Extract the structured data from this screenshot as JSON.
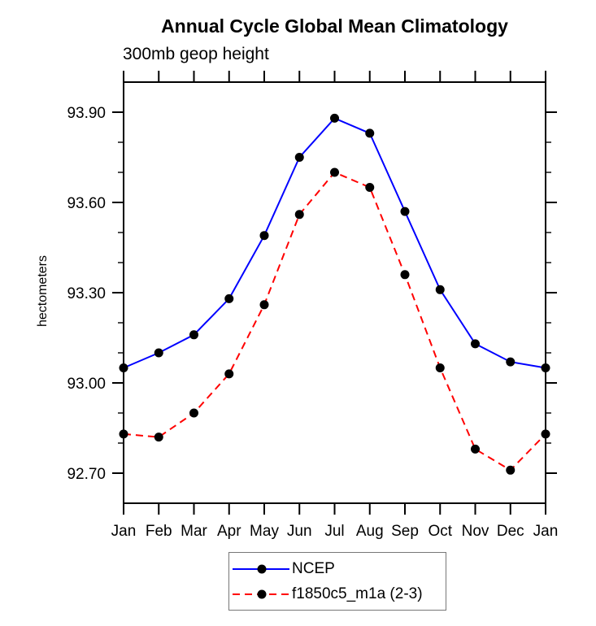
{
  "title": "Annual Cycle Global Mean Climatology",
  "subtitle": "300mb geop height",
  "ylabel": "hectometers",
  "colors": {
    "ncep_line": "#0000ff",
    "model_line": "#ff0000",
    "marker": "#000000",
    "axis": "#000000"
  },
  "legend": {
    "items": [
      "NCEP",
      "f1850c5_m1a (2-3)"
    ]
  },
  "chart_data": {
    "type": "line",
    "title": "Annual Cycle Global Mean Climatology",
    "subtitle": "300mb geop height",
    "ylabel": "hectometers",
    "categories": [
      "Jan",
      "Feb",
      "Mar",
      "Apr",
      "May",
      "Jun",
      "Jul",
      "Aug",
      "Sep",
      "Oct",
      "Nov",
      "Dec",
      "Jan"
    ],
    "series": [
      {
        "name": "NCEP",
        "color": "#0000ff",
        "style": "solid",
        "marker": "circle",
        "marker_color": "#000000",
        "values": [
          93.05,
          93.1,
          93.16,
          93.28,
          93.49,
          93.75,
          93.88,
          93.83,
          93.57,
          93.31,
          93.13,
          93.07,
          93.05
        ]
      },
      {
        "name": "f1850c5_m1a (2-3)",
        "color": "#ff0000",
        "style": "dashed",
        "marker": "circle",
        "marker_color": "#000000",
        "values": [
          92.83,
          92.82,
          92.9,
          93.03,
          93.26,
          93.56,
          93.7,
          93.65,
          93.36,
          93.05,
          92.78,
          92.71,
          92.83
        ]
      }
    ],
    "ylim": [
      92.6,
      94.0
    ],
    "yticks_major": [
      92.7,
      93.0,
      93.3,
      93.6,
      93.9
    ],
    "yticks_minor": [
      92.8,
      92.9,
      93.1,
      93.2,
      93.4,
      93.5,
      93.7,
      93.8
    ],
    "ytick_decimals": 2,
    "grid": false,
    "legend_position": "bottom-center",
    "frame": "box-with-outward-ticks"
  }
}
